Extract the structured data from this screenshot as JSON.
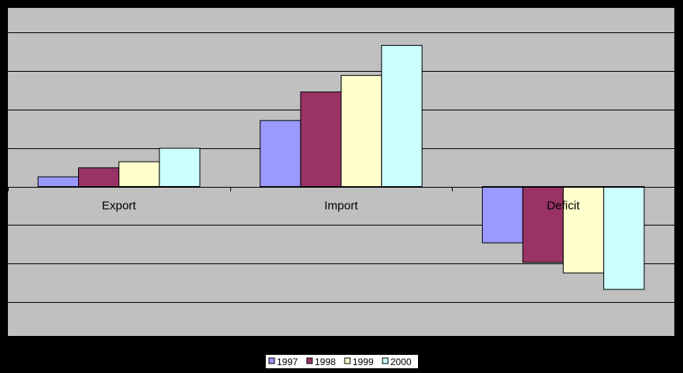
{
  "chart_data": {
    "type": "bar",
    "categories": [
      "Export",
      "Import",
      "Deficit"
    ],
    "series": [
      {
        "name": "1997",
        "values": [
          1.3,
          8.8,
          -7.5
        ]
      },
      {
        "name": "1998",
        "values": [
          2.5,
          12.6,
          -10.1
        ]
      },
      {
        "name": "1999",
        "values": [
          3.3,
          14.8,
          -11.5
        ]
      },
      {
        "name": "2000",
        "values": [
          5.1,
          18.8,
          -13.7
        ]
      }
    ],
    "title": "",
    "xlabel": "",
    "ylabel": "",
    "ylim": [
      -19.9,
      23.8
    ],
    "grid": true,
    "legend": "bottom",
    "colors": {
      "background": "#000000",
      "plot_area": "#C0C0C0",
      "gridline": "#000000",
      "series": [
        "#9999FF",
        "#993366",
        "#FFFFCC",
        "#CCFFFF"
      ]
    }
  }
}
